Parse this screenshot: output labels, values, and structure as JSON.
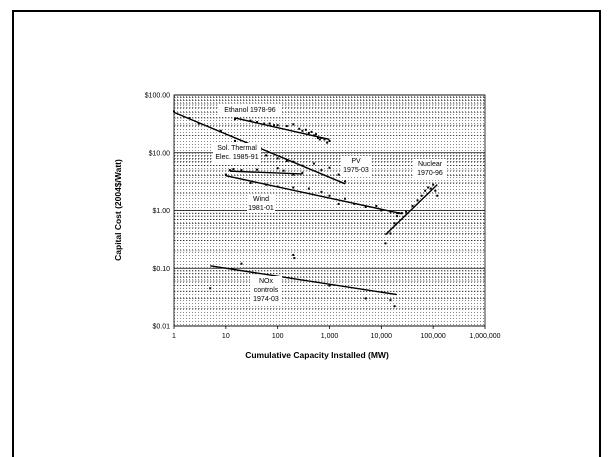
{
  "chart_data": {
    "type": "scatter",
    "title": "",
    "xlabel": "Cumulative Capacity Installed (MW)",
    "ylabel": "Capital Cost (2004$/Watt)",
    "x_scale": "log",
    "y_scale": "log",
    "xlim": [
      1,
      1000000
    ],
    "ylim": [
      0.01,
      100
    ],
    "x_ticks": [
      1,
      10,
      100,
      1000,
      10000,
      100000,
      1000000
    ],
    "x_tick_labels": [
      "1",
      "10",
      "100",
      "1,000",
      "10,000",
      "100,000",
      "1,000,000"
    ],
    "y_ticks": [
      0.01,
      0.1,
      1,
      10,
      100
    ],
    "y_tick_labels": [
      "$0.01",
      "$0.10",
      "$1.00",
      "$10.00",
      "$100.00"
    ],
    "grid": "dotted bands",
    "series": [
      {
        "label": "Ethanol 1978-96",
        "points": [
          [
            15,
            38
          ],
          [
            30,
            36
          ],
          [
            40,
            34
          ],
          [
            55,
            32
          ],
          [
            70,
            32
          ],
          [
            85,
            30
          ],
          [
            100,
            30
          ],
          [
            150,
            29
          ],
          [
            200,
            31
          ],
          [
            260,
            26
          ],
          [
            300,
            24
          ],
          [
            350,
            25
          ],
          [
            400,
            22
          ],
          [
            450,
            23
          ],
          [
            500,
            20
          ],
          [
            550,
            21
          ],
          [
            600,
            18
          ],
          [
            650,
            17
          ],
          [
            700,
            18
          ],
          [
            800,
            17
          ],
          [
            900,
            15
          ],
          [
            1000,
            16
          ]
        ],
        "fit": [
          [
            15,
            40
          ],
          [
            1000,
            17
          ]
        ]
      },
      {
        "label": "PV 1975-03",
        "points": [
          [
            1,
            52
          ],
          [
            2,
            40
          ],
          [
            3,
            32
          ],
          [
            8,
            24
          ],
          [
            15,
            16
          ],
          [
            30,
            12
          ],
          [
            60,
            9
          ],
          [
            100,
            8
          ],
          [
            150,
            7.2
          ],
          [
            200,
            7
          ],
          [
            300,
            6
          ],
          [
            500,
            6.5
          ],
          [
            700,
            5
          ],
          [
            1000,
            5.5
          ],
          [
            1500,
            4.2
          ],
          [
            2000,
            3.2
          ]
        ],
        "fit": [
          [
            1,
            50
          ],
          [
            2000,
            2.9
          ]
        ]
      },
      {
        "label": "Sol. Thermal Elec. 1985-91",
        "points": [
          [
            12,
            5
          ],
          [
            14,
            5.2
          ],
          [
            20,
            5
          ],
          [
            40,
            5.1
          ],
          [
            100,
            5.4
          ],
          [
            130,
            4.9
          ],
          [
            200,
            4.2
          ],
          [
            300,
            4.5
          ]
        ],
        "fit": [
          [
            12,
            4.8
          ],
          [
            300,
            4.3
          ]
        ]
      },
      {
        "label": "Wind 1981-01",
        "points": [
          [
            10,
            4.2
          ],
          [
            30,
            3
          ],
          [
            60,
            2.8
          ],
          [
            100,
            2.6
          ],
          [
            200,
            2.5
          ],
          [
            400,
            2.4
          ],
          [
            700,
            2.1
          ],
          [
            1000,
            1.8
          ],
          [
            1500,
            1.3
          ],
          [
            2000,
            1.6
          ],
          [
            3000,
            1.3
          ],
          [
            5000,
            1.15
          ],
          [
            8000,
            1.2
          ],
          [
            10000,
            1
          ],
          [
            15000,
            0.95
          ],
          [
            20000,
            0.9
          ]
        ],
        "fit": [
          [
            10,
            4
          ],
          [
            25000,
            0.88
          ]
        ]
      },
      {
        "label": "Nuclear 1970-96",
        "points": [
          [
            12000,
            0.27
          ],
          [
            15000,
            0.4
          ],
          [
            18000,
            0.6
          ],
          [
            20000,
            0.8
          ],
          [
            22000,
            0.9
          ],
          [
            25000,
            0.9
          ],
          [
            30000,
            0.95
          ],
          [
            40000,
            1.2
          ],
          [
            50000,
            1.5
          ],
          [
            60000,
            1.8
          ],
          [
            70000,
            2.2
          ],
          [
            80000,
            2.5
          ],
          [
            90000,
            2.4
          ],
          [
            100000,
            2.8
          ],
          [
            110000,
            2.2
          ],
          [
            120000,
            1.8
          ]
        ],
        "fit": [
          [
            12000,
            0.38
          ],
          [
            120000,
            2.8
          ]
        ]
      },
      {
        "label": "NOx controls 1974-03",
        "points": [
          [
            5,
            0.045
          ],
          [
            20,
            0.12
          ],
          [
            200,
            0.17
          ],
          [
            210,
            0.15
          ],
          [
            1000,
            0.05
          ],
          [
            5000,
            0.03
          ],
          [
            15000,
            0.028
          ],
          [
            18000,
            0.022
          ]
        ],
        "fit": [
          [
            5,
            0.11
          ],
          [
            20000,
            0.035
          ]
        ]
      }
    ]
  },
  "annotations": {
    "ethanol": "Ethanol 1978-96",
    "pv_1": "PV",
    "pv_2": "1975-03",
    "solar_1": "Sol. Thermal",
    "solar_2": "Elec. 1985-91",
    "wind_1": "Wind",
    "wind_2": "1981-01",
    "nuclear_1": "Nuclear",
    "nuclear_2": "1970-96",
    "nox_1": "NOx",
    "nox_2": "controls",
    "nox_3": "1974-03"
  }
}
